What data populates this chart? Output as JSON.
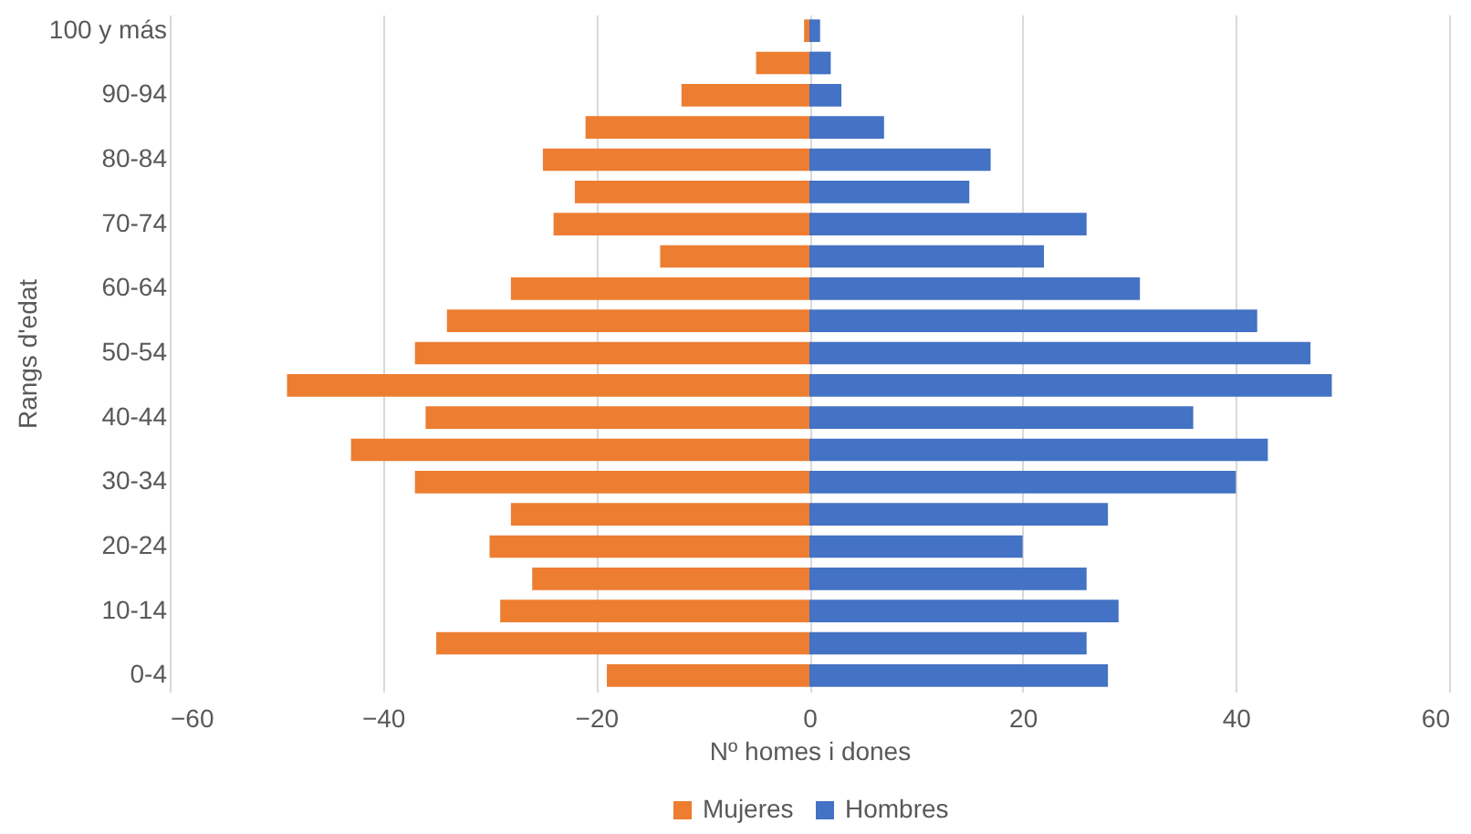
{
  "chart_data": {
    "type": "bar",
    "orientation": "horizontal",
    "stacked": true,
    "xlabel": "Nº homes i dones",
    "ylabel": "Rangs d'edat",
    "categories": [
      "100 y más",
      null,
      "90-94",
      null,
      "80-84",
      null,
      "70-74",
      null,
      "60-64",
      null,
      "50-54",
      null,
      "40-44",
      null,
      "30-34",
      null,
      "20-24",
      null,
      "10-14",
      null,
      "0-4"
    ],
    "series": [
      {
        "name": "Mujeres",
        "color": "#ed7d31",
        "values": [
          -0.5,
          -5,
          -12,
          -21,
          -25,
          -22,
          -24,
          -14,
          -28,
          -34,
          -37,
          -49,
          -36,
          -43,
          -37,
          -28,
          -30,
          -26,
          -29,
          -35,
          -19
        ]
      },
      {
        "name": "Hombres",
        "color": "#4472c4",
        "values": [
          1,
          2,
          3,
          7,
          17,
          15,
          26,
          22,
          31,
          42,
          47,
          49,
          36,
          43,
          40,
          28,
          20,
          26,
          29,
          26,
          28
        ]
      }
    ],
    "xlim": [
      -60,
      60
    ],
    "xticks": [
      -60,
      -40,
      -20,
      0,
      20,
      40,
      60
    ],
    "grid": "x",
    "legend": "bottom"
  }
}
